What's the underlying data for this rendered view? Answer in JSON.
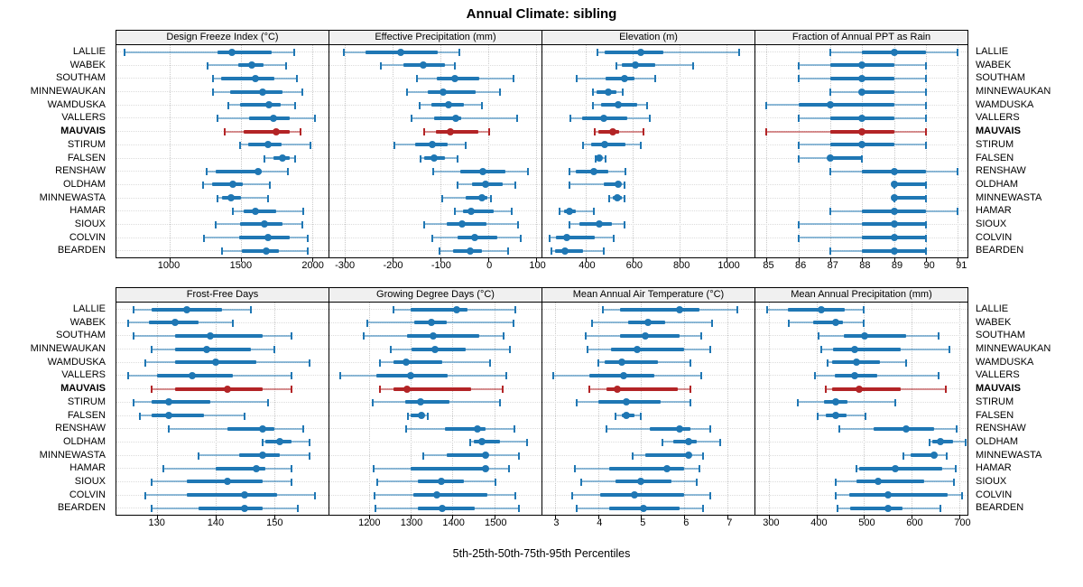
{
  "title": "Annual Climate: sibling",
  "caption": "5th-25th-50th-75th-95th Percentiles",
  "highlight_station": "MAUVAIS",
  "colors": {
    "series_blue": "#1f77b4",
    "highlight_red": "#b32426",
    "panel_header_bg": "#f0f0f0",
    "panel_border": "#000000",
    "gridline": "#c9c9c9",
    "row_guide": "#dcdcdc"
  },
  "chart_data": {
    "type": "dot-interval percentile plot (trellis, 2 rows x 4 columns of panels)",
    "percentiles": [
      5,
      25,
      50,
      75,
      95
    ],
    "legend_note": "thin line = 5th-95th, thick bar = 25th-75th, dot = median; MAUVAIS row highlighted red",
    "stations": [
      "LALLIE",
      "WABEK",
      "SOUTHAM",
      "MINNEWAUKAN",
      "WAMDUSKA",
      "VALLERS",
      "MAUVAIS",
      "STIRUM",
      "FALSEN",
      "RENSHAW",
      "OLDHAM",
      "MINNEWASTA",
      "HAMAR",
      "SIOUX",
      "COLVIN",
      "BEARDEN"
    ],
    "panels": [
      {
        "title": "Design Freeze Index (°C)",
        "ticks": [
          1000,
          1500,
          2000
        ],
        "xlim": [
          630,
          2115
        ],
        "values": [
          [
            684,
            1340,
            1440,
            1715,
            1872
          ],
          [
            1270,
            1480,
            1575,
            1660,
            1815
          ],
          [
            1308,
            1362,
            1605,
            1735,
            1895
          ],
          [
            1305,
            1425,
            1655,
            1790,
            1930
          ],
          [
            1415,
            1495,
            1700,
            1778,
            1879
          ],
          [
            1340,
            1560,
            1730,
            1845,
            2018
          ],
          [
            1390,
            1522,
            1746,
            1846,
            1916
          ],
          [
            1496,
            1554,
            1693,
            1789,
            1990
          ],
          [
            1667,
            1731,
            1793,
            1843,
            1881
          ],
          [
            1265,
            1325,
            1620,
            1646,
            1830
          ],
          [
            1235,
            1300,
            1445,
            1515,
            1705
          ],
          [
            1340,
            1370,
            1430,
            1500,
            1690
          ],
          [
            1447,
            1522,
            1603,
            1746,
            1936
          ],
          [
            1325,
            1495,
            1665,
            1790,
            1930
          ],
          [
            1245,
            1490,
            1692,
            1843,
            1970
          ],
          [
            1368,
            1510,
            1676,
            1767,
            1970
          ]
        ]
      },
      {
        "title": "Effective Precipitation (mm)",
        "ticks": [
          -300,
          -200,
          -100,
          0,
          100
        ],
        "xlim": [
          -332,
          112
        ],
        "values": [
          [
            -302,
            -256,
            -182,
            -105,
            -60
          ],
          [
            -224,
            -177,
            -136,
            -90,
            -69
          ],
          [
            -148,
            -108,
            -69,
            -18,
            54
          ],
          [
            -169,
            -127,
            -93,
            -25,
            25
          ],
          [
            -144,
            -118,
            -82,
            -50,
            -12
          ],
          [
            -161,
            -113,
            -67,
            -57,
            61
          ],
          [
            -133,
            -109,
            -78,
            -20,
            2
          ],
          [
            -196,
            -153,
            -116,
            -85,
            -46
          ],
          [
            -142,
            -134,
            -112,
            -91,
            -63
          ],
          [
            -115,
            -58,
            -10,
            37,
            83
          ],
          [
            -64,
            -34,
            -6,
            31,
            57
          ],
          [
            -96,
            -47,
            -12,
            -1,
            7
          ],
          [
            -69,
            -53,
            -36,
            11,
            50
          ],
          [
            -133,
            -87,
            -55,
            -4,
            62
          ],
          [
            -117,
            -63,
            -28,
            20,
            69
          ],
          [
            -102,
            -73,
            -38,
            -12,
            42
          ]
        ]
      },
      {
        "title": "Elevation (m)",
        "ticks": [
          400,
          600,
          800,
          1000
        ],
        "xlim": [
          215,
          1120
        ],
        "values": [
          [
            448,
            480,
            635,
            730,
            1055
          ],
          [
            530,
            555,
            610,
            695,
            860
          ],
          [
            360,
            484,
            564,
            606,
            697
          ],
          [
            430,
            445,
            497,
            532,
            557
          ],
          [
            432,
            467,
            540,
            620,
            660
          ],
          [
            335,
            385,
            475,
            578,
            673
          ],
          [
            439,
            452,
            516,
            542,
            648
          ],
          [
            387,
            423,
            480,
            568,
            635
          ],
          [
            441,
            446,
            458,
            471,
            484
          ],
          [
            329,
            359,
            436,
            497,
            568
          ],
          [
            329,
            475,
            539,
            548,
            565
          ],
          [
            500,
            514,
            535,
            552,
            565
          ],
          [
            290,
            307,
            329,
            359,
            436
          ],
          [
            329,
            374,
            458,
            510,
            565
          ],
          [
            245,
            274,
            320,
            439,
            519
          ],
          [
            252,
            268,
            312,
            390,
            475
          ]
        ]
      },
      {
        "title": "Fraction of Annual PPT as Rain",
        "ticks": [
          85,
          86,
          87,
          88,
          89,
          90,
          91
        ],
        "xlim": [
          84.65,
          91.3
        ],
        "values": [
          [
            87,
            88,
            89,
            90,
            91
          ],
          [
            86,
            87,
            88,
            89,
            90
          ],
          [
            86,
            87,
            88,
            89,
            90
          ],
          [
            87,
            88,
            88,
            89,
            90
          ],
          [
            85,
            86,
            87,
            89,
            90
          ],
          [
            86,
            87,
            88,
            89,
            90
          ],
          [
            85,
            87,
            88,
            89,
            90
          ],
          [
            86,
            87,
            88,
            89,
            90
          ],
          [
            86,
            87,
            87,
            88,
            88
          ],
          [
            87,
            88,
            89,
            90,
            91
          ],
          [
            89,
            89,
            89,
            90,
            90
          ],
          [
            89,
            89,
            89,
            90,
            90
          ],
          [
            87,
            88,
            89,
            90,
            91
          ],
          [
            86,
            88,
            89,
            90,
            90
          ],
          [
            86,
            88,
            89,
            90,
            90
          ],
          [
            87,
            88,
            89,
            90,
            90
          ]
        ]
      },
      {
        "title": "Frost-Free Days",
        "ticks": [
          130,
          140,
          150
        ],
        "xlim": [
          123,
          159.3
        ],
        "values": [
          [
            126,
            129,
            135,
            141,
            146
          ],
          [
            125,
            128.5,
            133,
            137,
            143
          ],
          [
            126,
            133,
            139,
            148,
            153
          ],
          [
            129,
            133,
            138.5,
            146,
            150
          ],
          [
            128,
            133,
            140,
            147,
            156
          ],
          [
            125,
            130,
            136,
            143,
            153
          ],
          [
            129,
            133,
            142,
            148,
            153
          ],
          [
            126,
            129,
            132,
            139,
            149
          ],
          [
            127,
            129,
            132,
            138,
            145
          ],
          [
            132,
            142,
            148,
            150,
            155
          ],
          [
            148,
            148.5,
            151,
            153,
            156
          ],
          [
            137,
            144,
            148,
            151,
            156
          ],
          [
            131,
            140,
            147,
            148.5,
            153
          ],
          [
            129,
            135,
            142,
            148,
            153
          ],
          [
            128,
            135,
            145,
            150.5,
            157
          ],
          [
            129,
            137,
            145,
            148,
            154
          ]
        ]
      },
      {
        "title": "Growing Degree Days (°C)",
        "ticks": [
          1200,
          1300,
          1400,
          1500
        ],
        "xlim": [
          1105,
          1613
        ],
        "values": [
          [
            1258,
            1300,
            1410,
            1435,
            1550
          ],
          [
            1196,
            1309,
            1350,
            1386,
            1547
          ],
          [
            1188,
            1291,
            1353,
            1464,
            1522
          ],
          [
            1253,
            1302,
            1357,
            1431,
            1538
          ],
          [
            1227,
            1258,
            1289,
            1376,
            1490
          ],
          [
            1130,
            1218,
            1300,
            1389,
            1528
          ],
          [
            1225,
            1258,
            1291,
            1444,
            1519
          ],
          [
            1208,
            1286,
            1323,
            1393,
            1514
          ],
          [
            1293,
            1300,
            1325,
            1330,
            1341
          ],
          [
            1289,
            1381,
            1460,
            1480,
            1549
          ],
          [
            1443,
            1451,
            1470,
            1514,
            1578
          ],
          [
            1330,
            1386,
            1480,
            1485,
            1559
          ],
          [
            1211,
            1300,
            1478,
            1485,
            1535
          ],
          [
            1220,
            1317,
            1373,
            1428,
            1502
          ],
          [
            1213,
            1305,
            1362,
            1483,
            1550
          ],
          [
            1215,
            1317,
            1376,
            1453,
            1559
          ]
        ]
      },
      {
        "title": "Mean Annual Air Temperature (°C)",
        "ticks": [
          3,
          4,
          5,
          6,
          7
        ],
        "xlim": [
          2.7,
          7.64
        ],
        "values": [
          [
            4.1,
            4.5,
            5.9,
            6.35,
            7.25
          ],
          [
            3.85,
            4.7,
            5.15,
            5.55,
            6.65
          ],
          [
            3.7,
            4.5,
            5.1,
            5.9,
            6.4
          ],
          [
            3.75,
            4.3,
            4.9,
            6.0,
            6.6
          ],
          [
            4.0,
            4.15,
            4.55,
            5.4,
            6.15
          ],
          [
            2.95,
            3.8,
            4.6,
            5.3,
            6.4
          ],
          [
            3.8,
            4.2,
            4.45,
            5.85,
            6.15
          ],
          [
            3.5,
            4.0,
            4.65,
            5.45,
            6.15
          ],
          [
            4.4,
            4.55,
            4.65,
            4.85,
            5.0
          ],
          [
            4.2,
            5.2,
            5.9,
            6.15,
            6.6
          ],
          [
            5.5,
            5.75,
            6.1,
            6.3,
            6.85
          ],
          [
            4.8,
            5.1,
            6.1,
            6.15,
            6.45
          ],
          [
            3.45,
            4.25,
            5.6,
            6.0,
            6.35
          ],
          [
            3.6,
            4.4,
            5.0,
            5.7,
            6.3
          ],
          [
            3.4,
            4.05,
            4.85,
            6.0,
            6.6
          ],
          [
            3.5,
            4.25,
            5.05,
            5.9,
            6.45
          ]
        ]
      },
      {
        "title": "Mean Annual Precipitation (mm)",
        "ticks": [
          300,
          400,
          500,
          600,
          700
        ],
        "xlim": [
          271,
          718
        ],
        "values": [
          [
            295,
            339,
            409,
            460,
            500
          ],
          [
            341,
            393,
            441,
            455,
            500
          ],
          [
            404,
            458,
            502,
            589,
            657
          ],
          [
            409,
            435,
            481,
            578,
            680
          ],
          [
            424,
            432,
            484,
            533,
            589
          ],
          [
            396,
            439,
            481,
            528,
            657
          ],
          [
            419,
            432,
            489,
            578,
            672
          ],
          [
            361,
            415,
            440,
            465,
            565
          ],
          [
            402,
            419,
            441,
            463,
            504
          ],
          [
            448,
            520,
            588,
            648,
            696
          ],
          [
            639,
            644,
            661,
            687,
            715
          ],
          [
            582,
            598,
            647,
            652,
            674
          ],
          [
            484,
            490,
            565,
            665,
            693
          ],
          [
            441,
            484,
            530,
            626,
            690
          ],
          [
            441,
            468,
            550,
            676,
            706
          ],
          [
            445,
            471,
            550,
            582,
            660
          ]
        ]
      }
    ]
  }
}
